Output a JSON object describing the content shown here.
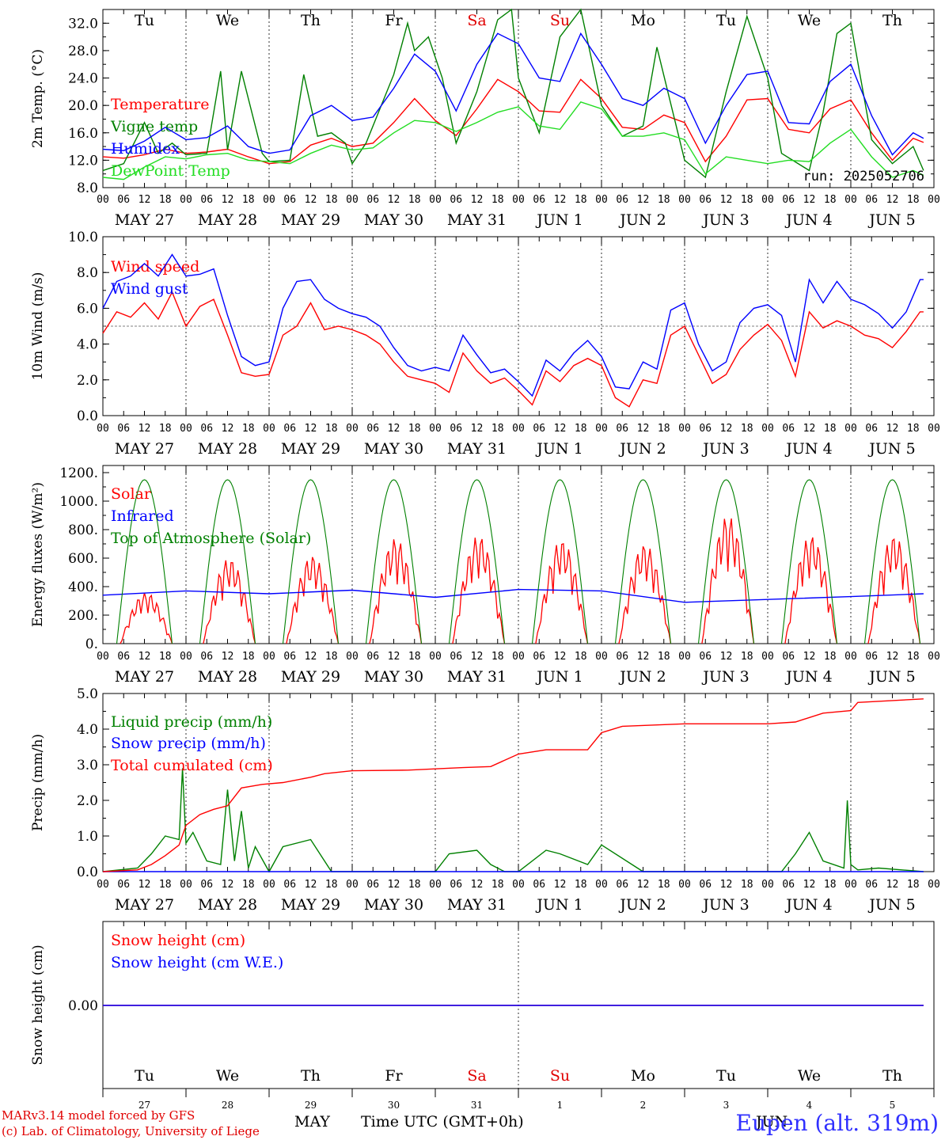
{
  "footer": {
    "credit_line1": "MARv3.14 model forced by GFS",
    "credit_line2": "(c) Lab. of Climatology, University of Liege",
    "site_label": "Eupen (alt. 319m)",
    "xaxis_title": "Time UTC (GMT+0h)",
    "month_may": "MAY",
    "month_jun": "JUN",
    "day_numbers": [
      "27",
      "28",
      "29",
      "30",
      "31",
      "1",
      "2",
      "3",
      "4",
      "5"
    ]
  },
  "hour_ticks": [
    "00",
    "06",
    "12",
    "18"
  ],
  "date_labels": [
    "MAY 27",
    "MAY 28",
    "MAY 29",
    "MAY 30",
    "MAY 31",
    "JUN  1",
    "JUN  2",
    "JUN  3",
    "JUN  4",
    "JUN  5"
  ],
  "weekdays": [
    {
      "label": "Tu",
      "color": "#000000"
    },
    {
      "label": "We",
      "color": "#000000"
    },
    {
      "label": "Th",
      "color": "#000000"
    },
    {
      "label": "Fr",
      "color": "#000000"
    },
    {
      "label": "Sa",
      "color": "#e00000"
    },
    {
      "label": "Su",
      "color": "#e00000"
    },
    {
      "label": "Mo",
      "color": "#000000"
    },
    {
      "label": "Tu",
      "color": "#000000"
    },
    {
      "label": "We",
      "color": "#000000"
    },
    {
      "label": "Th",
      "color": "#000000"
    }
  ],
  "chart_data": [
    {
      "type": "line",
      "ylabel": "2m Temp. (°C)",
      "ylim": [
        8,
        34
      ],
      "yticks": [
        "8.0",
        "12.0",
        "16.0",
        "20.0",
        "24.0",
        "28.0",
        "32.0"
      ],
      "annotation": "run: 2025052706",
      "x_unit": "hours since May 27 00 UTC",
      "grid": "vertical dotted lines at 00 UTC",
      "series": [
        {
          "name": "Temperature",
          "color": "#ff0000",
          "x": [
            0,
            6,
            12,
            18,
            24,
            30,
            36,
            42,
            48,
            54,
            60,
            66,
            72,
            78,
            84,
            90,
            96,
            102,
            108,
            114,
            120,
            126,
            132,
            138,
            144,
            150,
            156,
            162,
            168,
            174,
            180,
            186,
            192,
            198,
            204,
            210,
            216,
            222,
            228,
            234,
            237
          ],
          "values": [
            12.5,
            12.3,
            12.8,
            13.6,
            13.0,
            13.2,
            13.6,
            12.5,
            11.5,
            11.8,
            14.2,
            15.2,
            14.0,
            14.5,
            17.5,
            21.0,
            17.8,
            15.6,
            19.5,
            23.8,
            22.0,
            19.2,
            19.0,
            23.8,
            21.0,
            16.8,
            16.5,
            18.6,
            17.5,
            11.8,
            15.5,
            20.8,
            21.0,
            16.5,
            16.0,
            19.5,
            20.8,
            16.0,
            12.0,
            15.2,
            14.6
          ]
        },
        {
          "name": "Vigne temp",
          "color": "#008000",
          "x": [
            0,
            6,
            12,
            16,
            20,
            24,
            30,
            34,
            36,
            40,
            46,
            48,
            54,
            58,
            62,
            66,
            70,
            72,
            76,
            84,
            88,
            90,
            94,
            98,
            102,
            108,
            114,
            118,
            120,
            126,
            132,
            138,
            144,
            150,
            156,
            160,
            168,
            174,
            180,
            186,
            192,
            196,
            204,
            208,
            212,
            216,
            222,
            228,
            234,
            237
          ],
          "values": [
            10.5,
            11.5,
            17.5,
            13.0,
            14.5,
            12.8,
            13.0,
            25.0,
            13.5,
            25.0,
            13.0,
            11.8,
            12.0,
            24.5,
            15.5,
            16.0,
            14.5,
            11.5,
            14.5,
            24.5,
            32.0,
            28.0,
            30.0,
            24.0,
            14.5,
            22.0,
            32.5,
            34.0,
            24.0,
            16.0,
            30.0,
            34.0,
            20.0,
            15.5,
            17.0,
            28.5,
            12.0,
            9.5,
            22.0,
            33.0,
            24.0,
            13.0,
            10.5,
            19.0,
            30.5,
            32.0,
            15.0,
            11.5,
            14.0,
            10.5
          ]
        },
        {
          "name": "Humidex",
          "color": "#0000ff",
          "x": [
            0,
            6,
            12,
            18,
            24,
            30,
            36,
            42,
            48,
            54,
            60,
            66,
            72,
            78,
            84,
            90,
            96,
            102,
            108,
            114,
            120,
            126,
            132,
            138,
            144,
            150,
            156,
            162,
            168,
            174,
            180,
            186,
            192,
            198,
            204,
            210,
            216,
            222,
            228,
            234,
            237
          ],
          "values": [
            13.6,
            13.4,
            14.8,
            16.8,
            15.0,
            15.3,
            17.0,
            14.0,
            13.0,
            13.5,
            18.5,
            20.0,
            17.8,
            18.3,
            22.5,
            27.5,
            25.0,
            19.2,
            26.0,
            30.5,
            29.0,
            24.0,
            23.5,
            30.5,
            26.0,
            21.0,
            20.0,
            22.5,
            21.0,
            14.5,
            20.0,
            24.5,
            25.0,
            17.5,
            17.3,
            23.5,
            26.0,
            18.5,
            12.8,
            16.0,
            15.2
          ]
        },
        {
          "name": "DewPoint Temp",
          "color": "#22dd22",
          "x": [
            0,
            6,
            12,
            18,
            24,
            30,
            36,
            42,
            48,
            54,
            60,
            66,
            72,
            78,
            84,
            90,
            96,
            102,
            108,
            114,
            120,
            126,
            132,
            138,
            144,
            150,
            156,
            162,
            168,
            174,
            180,
            186,
            192,
            198,
            204,
            210,
            216,
            222,
            228,
            234,
            237
          ],
          "values": [
            9.5,
            9.2,
            11.0,
            12.5,
            12.2,
            12.8,
            13.0,
            12.0,
            11.8,
            11.5,
            13.0,
            14.2,
            13.5,
            13.8,
            16.0,
            17.8,
            17.5,
            16.2,
            17.5,
            19.0,
            19.8,
            17.0,
            16.5,
            20.5,
            19.5,
            15.5,
            15.5,
            16.0,
            15.0,
            10.0,
            12.5,
            12.0,
            11.5,
            12.0,
            11.8,
            14.5,
            16.5,
            12.5,
            9.5,
            10.5,
            9.8
          ]
        }
      ]
    },
    {
      "type": "line",
      "ylabel": "10m Wind (m/s)",
      "ylim": [
        0,
        10
      ],
      "yticks": [
        "0.0",
        "2.0",
        "4.0",
        "6.0",
        "8.0",
        "10.0"
      ],
      "reference_line": 5,
      "series": [
        {
          "name": "Wind speed",
          "color": "#ff0000",
          "x": [
            0,
            4,
            8,
            12,
            16,
            20,
            24,
            28,
            32,
            36,
            40,
            44,
            48,
            52,
            56,
            60,
            64,
            68,
            72,
            76,
            80,
            84,
            88,
            92,
            96,
            100,
            104,
            108,
            112,
            116,
            120,
            124,
            128,
            132,
            136,
            140,
            144,
            148,
            152,
            156,
            160,
            164,
            168,
            172,
            176,
            180,
            184,
            188,
            192,
            196,
            200,
            204,
            208,
            212,
            216,
            220,
            224,
            228,
            232,
            236,
            237
          ],
          "values": [
            4.6,
            5.8,
            5.5,
            6.3,
            5.4,
            6.9,
            5.0,
            6.1,
            6.5,
            4.5,
            2.4,
            2.2,
            2.3,
            4.5,
            5.0,
            6.3,
            4.8,
            5.0,
            4.8,
            4.5,
            4.0,
            3.0,
            2.2,
            2.0,
            1.8,
            1.3,
            3.5,
            2.5,
            1.8,
            2.1,
            1.4,
            0.6,
            2.5,
            1.9,
            2.8,
            3.2,
            2.8,
            1.0,
            0.5,
            2.0,
            1.8,
            4.5,
            5.0,
            3.4,
            1.8,
            2.3,
            3.7,
            4.5,
            5.1,
            4.2,
            2.2,
            5.8,
            4.9,
            5.3,
            5.0,
            4.5,
            4.3,
            3.8,
            4.7,
            5.8,
            5.8
          ]
        },
        {
          "name": "Wind gust",
          "color": "#0000ff",
          "x": [
            0,
            4,
            8,
            12,
            16,
            20,
            24,
            28,
            32,
            36,
            40,
            44,
            48,
            52,
            56,
            60,
            64,
            68,
            72,
            76,
            80,
            84,
            88,
            92,
            96,
            100,
            104,
            108,
            112,
            116,
            120,
            124,
            128,
            132,
            136,
            140,
            144,
            148,
            152,
            156,
            160,
            164,
            168,
            172,
            176,
            180,
            184,
            188,
            192,
            196,
            200,
            204,
            208,
            212,
            216,
            220,
            224,
            228,
            232,
            236,
            237
          ],
          "values": [
            6.0,
            7.5,
            7.8,
            8.5,
            7.8,
            9.0,
            7.8,
            7.9,
            8.2,
            5.6,
            3.3,
            2.8,
            3.0,
            6.0,
            7.5,
            7.6,
            6.5,
            6.0,
            5.7,
            5.5,
            5.0,
            3.8,
            2.8,
            2.5,
            2.7,
            2.5,
            4.5,
            3.4,
            2.4,
            2.6,
            1.9,
            1.1,
            3.1,
            2.5,
            3.5,
            4.2,
            3.3,
            1.6,
            1.5,
            3.0,
            2.6,
            5.9,
            6.3,
            4.0,
            2.5,
            3.0,
            5.2,
            6.0,
            6.2,
            5.6,
            3.0,
            7.6,
            6.3,
            7.5,
            6.5,
            6.2,
            5.7,
            4.9,
            5.8,
            7.6,
            7.6
          ]
        }
      ]
    },
    {
      "type": "line",
      "ylabel": "Energy fluxes (W/m²)",
      "ylim": [
        0,
        1250
      ],
      "yticks": [
        "0.",
        "200.",
        "400.",
        "600.",
        "800.",
        "1000.",
        "1200."
      ],
      "series": [
        {
          "name": "Solar",
          "color": "#ff0000",
          "daily_peaks_w_m2": [
            360,
            600,
            620,
            740,
            760,
            730,
            700,
            900,
            760,
            760
          ]
        },
        {
          "name": "Infrared",
          "color": "#0000ff",
          "x": [
            0,
            24,
            48,
            72,
            96,
            120,
            144,
            168,
            192,
            216,
            237
          ],
          "values": [
            340,
            370,
            350,
            375,
            325,
            380,
            370,
            290,
            310,
            330,
            350
          ]
        },
        {
          "name": "Top of Atmosphere (Solar)",
          "color": "#008000",
          "daily_peak_w_m2": 1150,
          "daylight_hours_utc": [
            4,
            20
          ]
        }
      ]
    },
    {
      "type": "line",
      "ylabel": "Precip (mm/h)",
      "ylim": [
        0,
        5
      ],
      "yticks": [
        "0.0",
        "1.0",
        "2.0",
        "3.0",
        "4.0",
        "5.0"
      ],
      "series": [
        {
          "name": "Liquid precip (mm/h)",
          "color": "#008000",
          "x": [
            0,
            10,
            14,
            18,
            22,
            23,
            24,
            26,
            30,
            34,
            36,
            38,
            40,
            42,
            44,
            48,
            52,
            60,
            66,
            96,
            100,
            108,
            112,
            116,
            120,
            128,
            132,
            140,
            144,
            156,
            176,
            196,
            200,
            204,
            208,
            214,
            215,
            216,
            218,
            224,
            237
          ],
          "values": [
            0,
            0.1,
            0.5,
            1.0,
            0.9,
            2.9,
            0.8,
            1.1,
            0.3,
            0.2,
            2.3,
            0.3,
            1.7,
            0.1,
            0.7,
            0,
            0.7,
            0.9,
            0,
            0,
            0.5,
            0.6,
            0.2,
            0,
            0,
            0.6,
            0.5,
            0.2,
            0.75,
            0,
            0,
            0,
            0.5,
            1.1,
            0.3,
            0.1,
            2.0,
            0.2,
            0.05,
            0.1,
            0
          ]
        },
        {
          "name": "Snow precip (mm/h)",
          "color": "#0000ff",
          "x": [
            0,
            237
          ],
          "values": [
            0,
            0
          ]
        },
        {
          "name": "Total cumulated (cm)",
          "color": "#ff0000",
          "x": [
            0,
            10,
            14,
            18,
            22,
            24,
            28,
            32,
            36,
            40,
            46,
            52,
            60,
            64,
            72,
            88,
            104,
            112,
            120,
            128,
            140,
            144,
            150,
            168,
            192,
            200,
            208,
            216,
            218,
            237
          ],
          "values": [
            0,
            0.05,
            0.2,
            0.45,
            0.75,
            1.3,
            1.6,
            1.75,
            1.85,
            2.35,
            2.45,
            2.5,
            2.65,
            2.75,
            2.83,
            2.85,
            2.92,
            2.95,
            3.3,
            3.42,
            3.42,
            3.9,
            4.08,
            4.15,
            4.15,
            4.2,
            4.45,
            4.52,
            4.75,
            4.85
          ]
        }
      ]
    },
    {
      "type": "line",
      "ylabel": "Snow height (cm)",
      "yticks": [
        "0.00"
      ],
      "series": [
        {
          "name": "Snow height (cm)",
          "color": "#ff0000",
          "x": [
            0,
            237
          ],
          "values": [
            0,
            0
          ]
        },
        {
          "name": "Snow height (cm W.E.)",
          "color": "#0000ff",
          "x": [
            0,
            237
          ],
          "values": [
            0,
            0
          ]
        }
      ]
    }
  ]
}
